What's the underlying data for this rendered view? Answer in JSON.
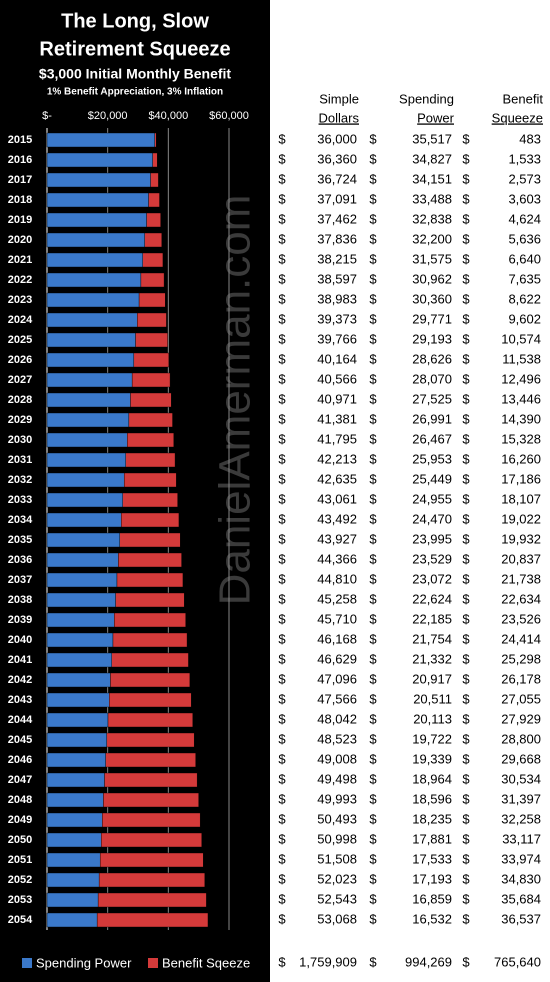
{
  "chart_data": {
    "type": "stacked_barh",
    "title": [
      "The Long, Slow",
      "Retirement Squeeze"
    ],
    "subtitle": "$3,000 Initial Monthly Benefit",
    "note": "1% Benefit Appreciation, 3% Inflation",
    "watermark": "DanielAmerman.com",
    "categories": [
      "2015",
      "2016",
      "2017",
      "2018",
      "2019",
      "2020",
      "2021",
      "2022",
      "2023",
      "2024",
      "2025",
      "2026",
      "2027",
      "2028",
      "2029",
      "2030",
      "2031",
      "2032",
      "2033",
      "2034",
      "2035",
      "2036",
      "2037",
      "2038",
      "2039",
      "2040",
      "2041",
      "2042",
      "2043",
      "2044",
      "2045",
      "2046",
      "2047",
      "2048",
      "2049",
      "2050",
      "2051",
      "2052",
      "2053",
      "2054"
    ],
    "series": [
      {
        "name": "Spending Power",
        "color": "#3a78c9",
        "values": [
          35517,
          34827,
          34151,
          33488,
          32838,
          32200,
          31575,
          30962,
          30360,
          29771,
          29193,
          28626,
          28070,
          27525,
          26991,
          26467,
          25953,
          25449,
          24955,
          24470,
          23995,
          23529,
          23072,
          22624,
          22185,
          21754,
          21332,
          20917,
          20511,
          20113,
          19722,
          19339,
          18964,
          18596,
          18235,
          17881,
          17533,
          17193,
          16859,
          16532
        ]
      },
      {
        "name": "Benefit Sqeeze",
        "color": "#d43a3a",
        "values": [
          483,
          1533,
          2573,
          3603,
          4624,
          5636,
          6640,
          7635,
          8622,
          9602,
          10574,
          11538,
          12496,
          13446,
          14390,
          15328,
          16260,
          17186,
          18107,
          19022,
          19932,
          20837,
          21738,
          22634,
          23526,
          24414,
          25298,
          26178,
          27055,
          27929,
          28800,
          29668,
          30534,
          31397,
          32258,
          33117,
          33974,
          34830,
          35684,
          36537
        ]
      }
    ],
    "xlim": [
      0,
      60000
    ],
    "xticks": [
      {
        "value": 0,
        "label": "$-"
      },
      {
        "value": 20000,
        "label": "$20,000"
      },
      {
        "value": 40000,
        "label": "$40,000"
      },
      {
        "value": 60000,
        "label": "$60,000"
      }
    ],
    "grid": true,
    "legend": "bottom"
  },
  "table": {
    "headers": [
      [
        "Simple",
        "Dollars"
      ],
      [
        "Spending",
        "Power"
      ],
      [
        "Benefit",
        "Squeeze"
      ]
    ],
    "currency_symbol": "$",
    "rows": [
      [
        "36,000",
        "35,517",
        "483"
      ],
      [
        "36,360",
        "34,827",
        "1,533"
      ],
      [
        "36,724",
        "34,151",
        "2,573"
      ],
      [
        "37,091",
        "33,488",
        "3,603"
      ],
      [
        "37,462",
        "32,838",
        "4,624"
      ],
      [
        "37,836",
        "32,200",
        "5,636"
      ],
      [
        "38,215",
        "31,575",
        "6,640"
      ],
      [
        "38,597",
        "30,962",
        "7,635"
      ],
      [
        "38,983",
        "30,360",
        "8,622"
      ],
      [
        "39,373",
        "29,771",
        "9,602"
      ],
      [
        "39,766",
        "29,193",
        "10,574"
      ],
      [
        "40,164",
        "28,626",
        "11,538"
      ],
      [
        "40,566",
        "28,070",
        "12,496"
      ],
      [
        "40,971",
        "27,525",
        "13,446"
      ],
      [
        "41,381",
        "26,991",
        "14,390"
      ],
      [
        "41,795",
        "26,467",
        "15,328"
      ],
      [
        "42,213",
        "25,953",
        "16,260"
      ],
      [
        "42,635",
        "25,449",
        "17,186"
      ],
      [
        "43,061",
        "24,955",
        "18,107"
      ],
      [
        "43,492",
        "24,470",
        "19,022"
      ],
      [
        "43,927",
        "23,995",
        "19,932"
      ],
      [
        "44,366",
        "23,529",
        "20,837"
      ],
      [
        "44,810",
        "23,072",
        "21,738"
      ],
      [
        "45,258",
        "22,624",
        "22,634"
      ],
      [
        "45,710",
        "22,185",
        "23,526"
      ],
      [
        "46,168",
        "21,754",
        "24,414"
      ],
      [
        "46,629",
        "21,332",
        "25,298"
      ],
      [
        "47,096",
        "20,917",
        "26,178"
      ],
      [
        "47,566",
        "20,511",
        "27,055"
      ],
      [
        "48,042",
        "20,113",
        "27,929"
      ],
      [
        "48,523",
        "19,722",
        "28,800"
      ],
      [
        "49,008",
        "19,339",
        "29,668"
      ],
      [
        "49,498",
        "18,964",
        "30,534"
      ],
      [
        "49,993",
        "18,596",
        "31,397"
      ],
      [
        "50,493",
        "18,235",
        "32,258"
      ],
      [
        "50,998",
        "17,881",
        "33,117"
      ],
      [
        "51,508",
        "17,533",
        "33,974"
      ],
      [
        "52,023",
        "17,193",
        "34,830"
      ],
      [
        "52,543",
        "16,859",
        "35,684"
      ],
      [
        "53,068",
        "16,532",
        "36,537"
      ]
    ],
    "totals": [
      "1,759,909",
      "994,269",
      "765,640"
    ]
  }
}
